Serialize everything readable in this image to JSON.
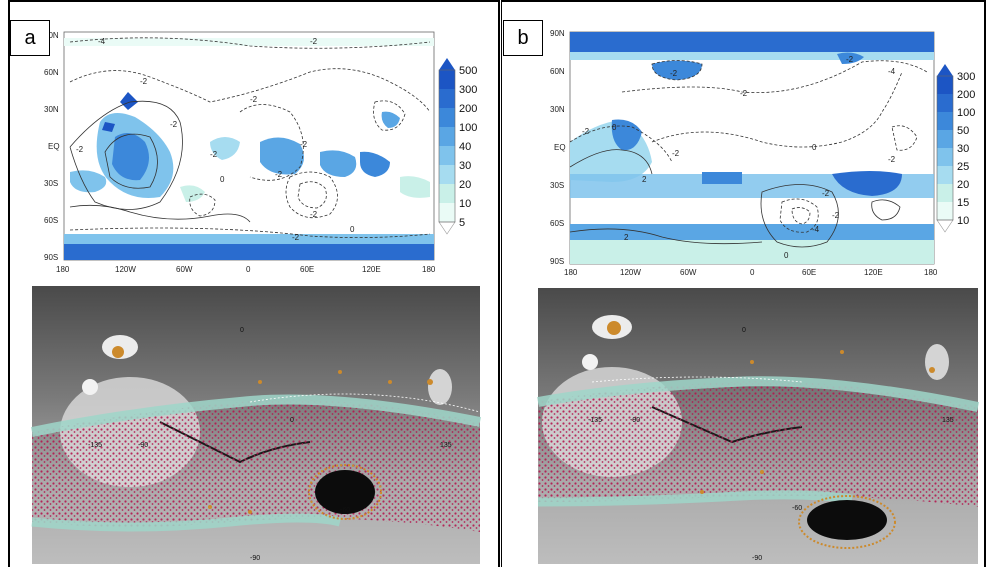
{
  "panels": [
    {
      "label": "a",
      "lat_ticks": [
        "90N",
        "60N",
        "30N",
        "EQ",
        "30S",
        "60S",
        "90S"
      ],
      "lon_ticks": [
        "180",
        "120W",
        "60W",
        "0",
        "60E",
        "120E",
        "180"
      ],
      "colorbar": [
        "500",
        "300",
        "200",
        "100",
        "40",
        "30",
        "20",
        "10",
        "5"
      ],
      "contour_labels": [
        "-4",
        "-2",
        "-2",
        "-2",
        "0",
        "-2",
        "-2",
        "-2",
        "-2",
        "-2",
        "-2",
        "-2",
        "0"
      ],
      "gray_labels": [
        "-135",
        "-90",
        "0",
        "-60",
        "0",
        "135",
        "-90"
      ]
    },
    {
      "label": "b",
      "lat_ticks": [
        "90N",
        "60N",
        "30N",
        "EQ",
        "30S",
        "60S",
        "90S"
      ],
      "lon_ticks": [
        "180",
        "120W",
        "60W",
        "0",
        "60E",
        "120E",
        "180"
      ],
      "colorbar": [
        "300",
        "200",
        "100",
        "50",
        "30",
        "25",
        "20",
        "15",
        "10"
      ],
      "contour_labels": [
        "-2",
        "-2",
        "-2",
        "-4",
        "-2",
        "0",
        "-2",
        "0",
        "-2",
        "2",
        "0",
        "-2",
        "2",
        "-4",
        "-2"
      ],
      "gray_labels": [
        "-135",
        "-90",
        "-60",
        "0",
        "135",
        "-90"
      ]
    }
  ],
  "colors": {
    "shade_levels": [
      "#eafbf6",
      "#c9f0e8",
      "#a6dcf0",
      "#7fc3ec",
      "#5aa6e4",
      "#3c88da",
      "#2a6ccf",
      "#1c55c4"
    ],
    "mars_teal": "#9fd6c9",
    "mars_crimson": "#b3164e",
    "mars_orange": "#cc8a2c"
  }
}
